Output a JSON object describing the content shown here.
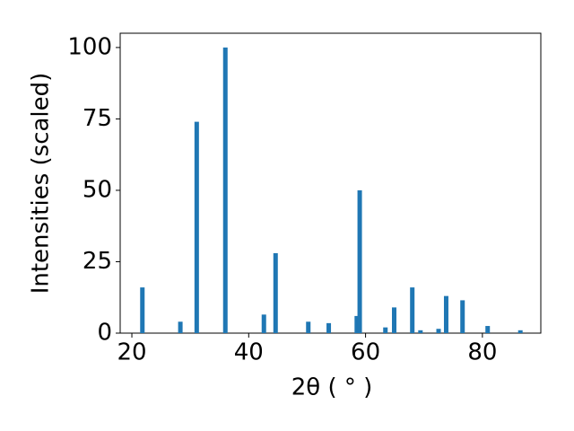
{
  "chart_data": {
    "type": "bar",
    "x": [
      21.8,
      28.3,
      31.1,
      36.0,
      42.6,
      44.6,
      50.2,
      53.7,
      58.5,
      59.0,
      63.4,
      64.9,
      68.0,
      69.4,
      72.5,
      73.8,
      76.6,
      80.9,
      86.5
    ],
    "values": [
      16,
      4,
      74,
      100,
      6.5,
      28,
      4,
      3.5,
      6,
      50,
      2,
      9,
      16,
      1,
      1.5,
      13,
      11.5,
      2.5,
      1
    ],
    "color": "#1f77b4",
    "xlabel": "2θ ( ° )",
    "ylabel": "Intensities (scaled)",
    "xlim": [
      18,
      90
    ],
    "ylim": [
      0,
      105
    ],
    "xticks": [
      20,
      40,
      60,
      80
    ],
    "yticks": [
      0,
      25,
      50,
      75,
      100
    ],
    "grid": false
  }
}
